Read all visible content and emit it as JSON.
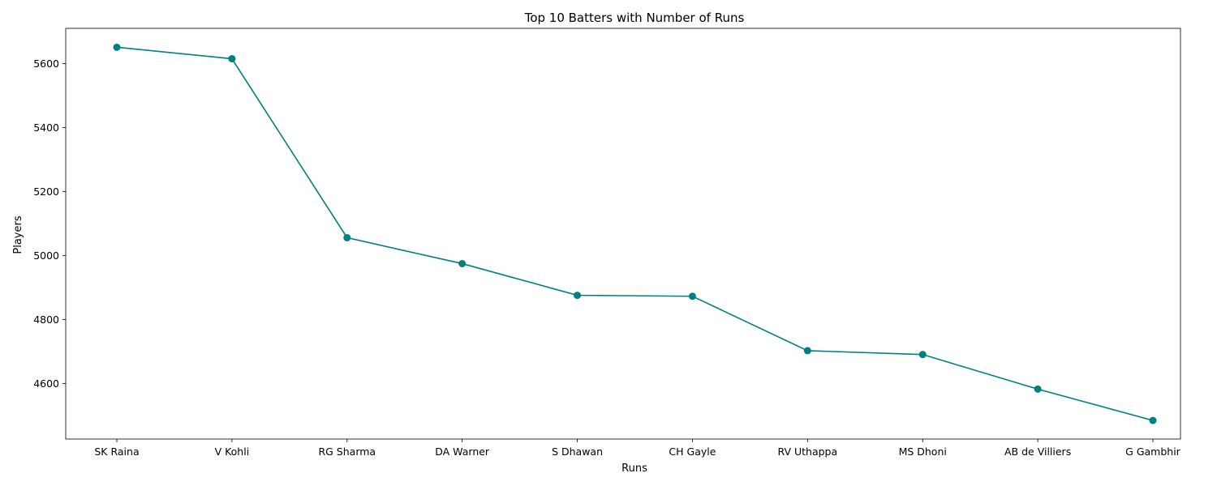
{
  "chart_data": {
    "type": "line",
    "title": "Top 10 Batters with Number of Runs",
    "xlabel": "Runs",
    "ylabel": "Players",
    "categories": [
      "SK Raina",
      "V Kohli",
      "RG Sharma",
      "DA Warner",
      "S Dhawan",
      "CH Gayle",
      "RV Uthappa",
      "MS Dhoni",
      "AB de Villiers",
      "G Gambhir"
    ],
    "values": [
      5651,
      5615,
      5056,
      4975,
      4876,
      4873,
      4703,
      4691,
      4583,
      4485
    ],
    "ylim": [
      4427,
      5710
    ],
    "yticks": [
      4600,
      4800,
      5000,
      5200,
      5400,
      5600
    ],
    "grid": false,
    "marker": "circle",
    "color": "#008080"
  }
}
